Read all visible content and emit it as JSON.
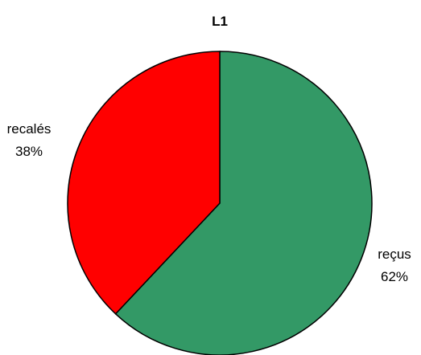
{
  "chart_data": {
    "type": "pie",
    "title": "L1",
    "start_angle_deg": 0,
    "direction": "clockwise",
    "slices": [
      {
        "key": "recus",
        "label": "reçus",
        "value": 62,
        "value_label": "62%",
        "color": "#339966"
      },
      {
        "key": "recales",
        "label": "recalés",
        "value": 38,
        "value_label": "38%",
        "color": "#ff0000"
      }
    ],
    "outline_color": "#000000",
    "legend": "none"
  }
}
